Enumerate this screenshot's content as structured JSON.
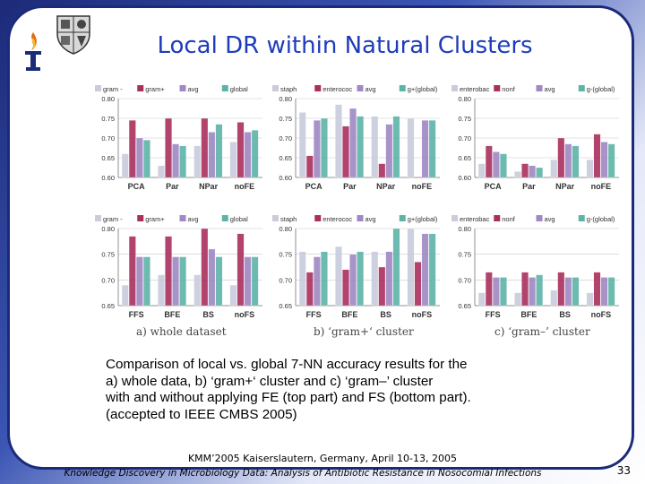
{
  "slide": {
    "title": "Local DR within Natural Clusters",
    "description_lines": [
      "Comparison of local vs. global 7-NN accuracy results for the",
      "a) whole data, b) ‘gram+‘ cluster and c) ‘gram–’ cluster",
      "with and without applying FE (top part) and FS (bottom part).",
      "(accepted to IEEE CMBS 2005)"
    ],
    "captions": [
      "a) whole dataset",
      "b) ‘gram+‘ cluster",
      "c) ‘gram–’ cluster"
    ],
    "footer_line1": "KMM’2005 Kaiserslautern, Germany,  April 10-13, 2005",
    "footer_line2": "Knowledge Discovery in Microbiology Data: Analysis of Antibiotic Resistance in Nosocomial Infections",
    "slide_number": "33",
    "colors": {
      "frame": "#1b2a7a",
      "title": "#1f3cb8",
      "series_gray": "#c8ccdc",
      "series_maroon": "#aa2f5d",
      "series_purple": "#9f88c4",
      "series_teal": "#5eb3a8"
    }
  },
  "chart_data": [
    {
      "type": "bar",
      "panel": "a-top",
      "categories": [
        "PCA",
        "Par",
        "NPar",
        "noFE"
      ],
      "series": [
        {
          "name": "gram -",
          "values": [
            0.66,
            0.63,
            0.68,
            0.69
          ]
        },
        {
          "name": "gram+",
          "values": [
            0.745,
            0.75,
            0.75,
            0.74
          ]
        },
        {
          "name": "avg",
          "values": [
            0.7,
            0.685,
            0.715,
            0.715
          ]
        },
        {
          "name": "global",
          "values": [
            0.695,
            0.68,
            0.735,
            0.72
          ]
        }
      ],
      "yticks": [
        "0.60",
        "0.65",
        "0.70",
        "0.75",
        "0.80"
      ],
      "ylim": [
        0.6,
        0.8
      ],
      "grid": true,
      "legend": "top"
    },
    {
      "type": "bar",
      "panel": "b-top",
      "categories": [
        "PCA",
        "Par",
        "NPar",
        "noFE"
      ],
      "series": [
        {
          "name": "staph",
          "values": [
            0.765,
            0.785,
            0.755,
            0.75
          ]
        },
        {
          "name": "enterococ",
          "values": [
            0.655,
            0.73,
            0.635,
            0.6
          ]
        },
        {
          "name": "avg",
          "values": [
            0.745,
            0.775,
            0.735,
            0.745
          ]
        },
        {
          "name": "g+(global)",
          "values": [
            0.75,
            0.755,
            0.755,
            0.745
          ]
        }
      ],
      "yticks": [
        "0.60",
        "0.65",
        "0.70",
        "0.75",
        "0.80"
      ],
      "ylim": [
        0.6,
        0.8
      ],
      "grid": true,
      "legend": "top"
    },
    {
      "type": "bar",
      "panel": "c-top",
      "categories": [
        "PCA",
        "Par",
        "NPar",
        "noFE"
      ],
      "series": [
        {
          "name": "enterobac",
          "values": [
            0.635,
            0.615,
            0.645,
            0.645
          ]
        },
        {
          "name": "nonf",
          "values": [
            0.68,
            0.635,
            0.7,
            0.71
          ]
        },
        {
          "name": "avg",
          "values": [
            0.665,
            0.63,
            0.685,
            0.69
          ]
        },
        {
          "name": "g-(global)",
          "values": [
            0.66,
            0.625,
            0.68,
            0.685
          ]
        }
      ],
      "yticks": [
        "0.60",
        "0.65",
        "0.70",
        "0.75",
        "0.80"
      ],
      "ylim": [
        0.6,
        0.8
      ],
      "grid": true,
      "legend": "top"
    },
    {
      "type": "bar",
      "panel": "a-bottom",
      "categories": [
        "FFS",
        "BFE",
        "BS",
        "noFS"
      ],
      "series": [
        {
          "name": "gram -",
          "values": [
            0.69,
            0.71,
            0.71,
            0.69
          ]
        },
        {
          "name": "gram+",
          "values": [
            0.785,
            0.785,
            0.8,
            0.79
          ]
        },
        {
          "name": "avg",
          "values": [
            0.745,
            0.745,
            0.76,
            0.745
          ]
        },
        {
          "name": "global",
          "values": [
            0.745,
            0.745,
            0.745,
            0.745
          ]
        }
      ],
      "yticks": [
        "0.65",
        "0.70",
        "0.75",
        "0.80"
      ],
      "ylim": [
        0.65,
        0.8
      ],
      "grid": true,
      "legend": "top"
    },
    {
      "type": "bar",
      "panel": "b-bottom",
      "categories": [
        "FFS",
        "BFE",
        "BS",
        "noFS"
      ],
      "series": [
        {
          "name": "staph",
          "values": [
            0.755,
            0.765,
            0.755,
            0.8
          ]
        },
        {
          "name": "enterococ",
          "values": [
            0.715,
            0.72,
            0.725,
            0.735
          ]
        },
        {
          "name": "avg",
          "values": [
            0.745,
            0.75,
            0.755,
            0.79
          ]
        },
        {
          "name": "g+(global)",
          "values": [
            0.755,
            0.755,
            0.8,
            0.79
          ]
        }
      ],
      "yticks": [
        "0.65",
        "0.70",
        "0.75",
        "0.80"
      ],
      "ylim": [
        0.65,
        0.8
      ],
      "grid": true,
      "legend": "top"
    },
    {
      "type": "bar",
      "panel": "c-bottom",
      "categories": [
        "FFS",
        "BFE",
        "BS",
        "noFS"
      ],
      "series": [
        {
          "name": "enterobac",
          "values": [
            0.675,
            0.675,
            0.68,
            0.675
          ]
        },
        {
          "name": "nonf",
          "values": [
            0.715,
            0.715,
            0.715,
            0.715
          ]
        },
        {
          "name": "avg",
          "values": [
            0.705,
            0.705,
            0.705,
            0.705
          ]
        },
        {
          "name": "g-(global)",
          "values": [
            0.705,
            0.71,
            0.705,
            0.705
          ]
        }
      ],
      "yticks": [
        "0.65",
        "0.70",
        "0.75",
        "0.80"
      ],
      "ylim": [
        0.65,
        0.8
      ],
      "grid": true,
      "legend": "top"
    }
  ]
}
